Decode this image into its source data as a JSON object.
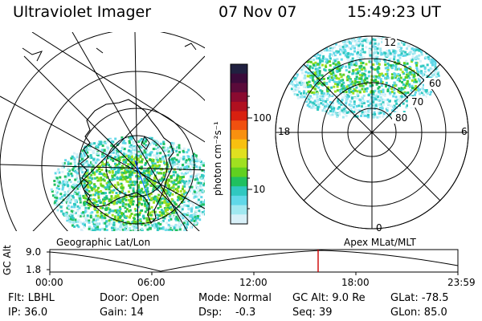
{
  "header": {
    "instrument": "Ultraviolet Imager",
    "date": "07 Nov 07",
    "time": "15:49:23 UT"
  },
  "colorbar": {
    "unit_label": "photon cm⁻²s⁻¹",
    "ticks": [
      "100",
      "10"
    ],
    "colors": [
      "#202040",
      "#3a0a3a",
      "#5a0a3a",
      "#8a0a30",
      "#b01020",
      "#d82010",
      "#f05010",
      "#f89010",
      "#f8c010",
      "#e0e020",
      "#a0e020",
      "#60d020",
      "#20c060",
      "#30c8c0",
      "#60d8e8",
      "#a0e8f0",
      "#d8f0f8"
    ]
  },
  "left_panel": {
    "label": "Geographic Lat/Lon"
  },
  "right_panel": {
    "label": "Apex MLat/MLT",
    "mlt_labels": [
      "12",
      "18",
      "6",
      "0"
    ],
    "lat_labels": [
      "60",
      "70",
      "80"
    ]
  },
  "altitude_plot": {
    "ylabel": "GC Alt",
    "yticks": [
      "9.0",
      "1.8"
    ],
    "xticks": [
      "00:00",
      "06:00",
      "12:00",
      "18:00",
      "23:59"
    ],
    "marker_color": "#cc0000"
  },
  "status": {
    "row1": {
      "flt": "Flt: LBHL",
      "door": "Door: Open",
      "mode": "Mode: Normal",
      "gcalt": "GC Alt: 9.0 Re",
      "glat": "GLat: -78.5"
    },
    "row2": {
      "ip": "IP: 36.0",
      "gain": "Gain: 14",
      "dsp": "Dsp:    -0.3",
      "seq": "Seq: 39",
      "glon": "GLon: 85.0"
    }
  }
}
